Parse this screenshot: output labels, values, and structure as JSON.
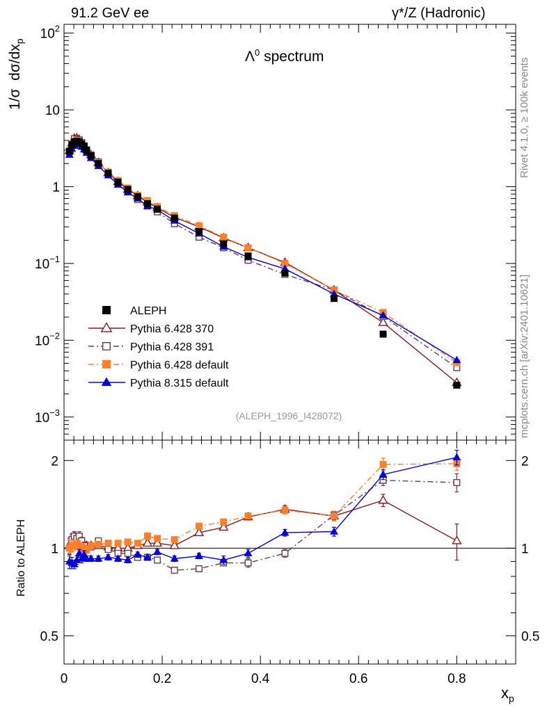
{
  "header": {
    "left": "91.2 GeV ee",
    "right": "γ*/Z (Hadronic)"
  },
  "side": {
    "top": "Rivet 4.1.0, ≥ 100k events",
    "bottom": "mcplots.cern.ch [arXiv:2401.10621]"
  },
  "colors": {
    "ALEPH": "#000000",
    "p370": "#8b1a1a",
    "p391": "#6b3a4a",
    "p6def": "#ff7f2a",
    "p8def": "#0000dd"
  },
  "chart_data": [
    {
      "type": "line",
      "title": "Λ0 spectrum",
      "title_base": "Λ",
      "title_sup": "0",
      "title_rest": " spectrum",
      "ylabel": "1/σ  dσ/dx_p",
      "ylabel_parts": {
        "a": "1/σ",
        "b": "dσ/dx",
        "sub": "p"
      },
      "yscale": "log",
      "ylim": [
        0.0005,
        130
      ],
      "xlim": [
        0,
        0.92
      ],
      "yticks": [
        {
          "v": 100,
          "base": "10",
          "exp": "2"
        },
        {
          "v": 10,
          "base": "10",
          "exp": ""
        },
        {
          "v": 1,
          "base": "1",
          "exp": ""
        },
        {
          "v": 0.1,
          "base": "10",
          "exp": "−1"
        },
        {
          "v": 0.01,
          "base": "10",
          "exp": "−2"
        },
        {
          "v": 0.001,
          "base": "10",
          "exp": "−3"
        }
      ],
      "analysis_label": "(ALEPH_1996_I428072)",
      "legend_position": "lower-left",
      "series": [
        {
          "name": "ALEPH",
          "key": "ALEPH",
          "marker": "square-filled",
          "dash": "none",
          "x": [
            0.011,
            0.016,
            0.021,
            0.026,
            0.031,
            0.036,
            0.041,
            0.046,
            0.055,
            0.07,
            0.09,
            0.11,
            0.13,
            0.15,
            0.17,
            0.19,
            0.225,
            0.275,
            0.325,
            0.375,
            0.45,
            0.55,
            0.65,
            0.8
          ],
          "y": [
            2.9,
            3.5,
            3.85,
            3.9,
            3.85,
            3.6,
            3.35,
            3.0,
            2.55,
            2.0,
            1.5,
            1.15,
            0.92,
            0.74,
            0.6,
            0.51,
            0.39,
            0.26,
            0.18,
            0.125,
            0.075,
            0.035,
            0.012,
            0.0026
          ]
        },
        {
          "name": "Pythia 6.428 370",
          "key": "p370",
          "marker": "triangle-open",
          "dash": "solid",
          "x": [
            0.011,
            0.016,
            0.021,
            0.026,
            0.031,
            0.036,
            0.041,
            0.046,
            0.055,
            0.07,
            0.09,
            0.11,
            0.13,
            0.15,
            0.17,
            0.19,
            0.225,
            0.275,
            0.325,
            0.375,
            0.45,
            0.55,
            0.65,
            0.8
          ],
          "y": [
            2.95,
            3.7,
            4.25,
            4.3,
            4.1,
            3.75,
            3.4,
            3.05,
            2.6,
            2.05,
            1.52,
            1.16,
            0.92,
            0.76,
            0.63,
            0.53,
            0.4,
            0.3,
            0.215,
            0.16,
            0.103,
            0.045,
            0.017,
            0.0028
          ]
        },
        {
          "name": "Pythia 6.428 391",
          "key": "p391",
          "marker": "square-open",
          "dash": "dashdot",
          "x": [
            0.011,
            0.016,
            0.021,
            0.026,
            0.031,
            0.036,
            0.041,
            0.046,
            0.055,
            0.07,
            0.09,
            0.11,
            0.13,
            0.15,
            0.17,
            0.19,
            0.225,
            0.275,
            0.325,
            0.375,
            0.45,
            0.55,
            0.65,
            0.8
          ],
          "y": [
            2.85,
            3.6,
            4.2,
            4.05,
            4.05,
            3.75,
            3.4,
            3.0,
            2.55,
            2.1,
            1.5,
            1.1,
            0.88,
            0.68,
            0.56,
            0.47,
            0.33,
            0.22,
            0.16,
            0.11,
            0.072,
            0.045,
            0.0205,
            0.0044
          ]
        },
        {
          "name": "Pythia 6.428 default",
          "key": "p6def",
          "marker": "square-filled",
          "dash": "dashdot",
          "x": [
            0.011,
            0.016,
            0.021,
            0.026,
            0.031,
            0.036,
            0.041,
            0.046,
            0.055,
            0.07,
            0.09,
            0.11,
            0.13,
            0.15,
            0.17,
            0.19,
            0.225,
            0.275,
            0.325,
            0.375,
            0.45,
            0.55,
            0.65,
            0.8
          ],
          "y": [
            2.9,
            3.55,
            3.9,
            4.0,
            3.9,
            3.6,
            3.3,
            2.95,
            2.6,
            2.05,
            1.55,
            1.2,
            0.96,
            0.77,
            0.66,
            0.55,
            0.42,
            0.31,
            0.22,
            0.16,
            0.1,
            0.045,
            0.023,
            0.0051
          ]
        },
        {
          "name": "Pythia 8.315 default",
          "key": "p8def",
          "marker": "triangle-filled",
          "dash": "solid",
          "x": [
            0.011,
            0.016,
            0.021,
            0.026,
            0.031,
            0.036,
            0.041,
            0.046,
            0.055,
            0.07,
            0.09,
            0.11,
            0.13,
            0.15,
            0.17,
            0.19,
            0.225,
            0.275,
            0.325,
            0.375,
            0.45,
            0.55,
            0.65,
            0.8
          ],
          "y": [
            2.6,
            3.1,
            3.4,
            3.55,
            3.55,
            3.3,
            3.05,
            2.75,
            2.35,
            1.85,
            1.4,
            1.06,
            0.84,
            0.7,
            0.56,
            0.5,
            0.36,
            0.245,
            0.165,
            0.12,
            0.085,
            0.04,
            0.021,
            0.0055
          ]
        }
      ]
    },
    {
      "type": "line",
      "ylabel": "Ratio to ALEPH",
      "xlabel": "x_p",
      "xlabel_parts": {
        "base": "x",
        "sub": "p"
      },
      "yscale": "log",
      "ylim": [
        0.4,
        2.35
      ],
      "xlim": [
        0,
        0.92
      ],
      "yticks": [
        {
          "v": 2,
          "label": "2"
        },
        {
          "v": 1,
          "label": "1"
        },
        {
          "v": 0.5,
          "label": "0.5"
        }
      ],
      "xticks": [
        {
          "v": 0,
          "label": "0"
        },
        {
          "v": 0.2,
          "label": "0.2"
        },
        {
          "v": 0.4,
          "label": "0.4"
        },
        {
          "v": 0.6,
          "label": "0.6"
        },
        {
          "v": 0.8,
          "label": "0.8"
        }
      ],
      "reference_line": 1,
      "series": [
        {
          "name": "Pythia 6.428 370",
          "key": "p370",
          "marker": "triangle-open",
          "dash": "solid",
          "x": [
            0.011,
            0.016,
            0.021,
            0.026,
            0.031,
            0.036,
            0.041,
            0.046,
            0.055,
            0.07,
            0.09,
            0.11,
            0.13,
            0.15,
            0.17,
            0.19,
            0.225,
            0.275,
            0.325,
            0.375,
            0.45,
            0.55,
            0.65,
            0.8
          ],
          "y": [
            1.02,
            1.06,
            1.1,
            1.08,
            1.06,
            1.04,
            1.01,
            1.02,
            1.02,
            1.02,
            1.01,
            1.0,
            1.0,
            1.02,
            1.04,
            1.04,
            1.02,
            1.13,
            1.18,
            1.28,
            1.36,
            1.29,
            1.46,
            1.06
          ],
          "err": [
            0.06,
            0.05,
            0.04,
            0.04,
            0.04,
            0.03,
            0.03,
            0.03,
            0.02,
            0.02,
            0.02,
            0.02,
            0.02,
            0.02,
            0.02,
            0.02,
            0.02,
            0.02,
            0.02,
            0.03,
            0.04,
            0.04,
            0.07,
            0.15
          ]
        },
        {
          "name": "Pythia 6.428 391",
          "key": "p391",
          "marker": "square-open",
          "dash": "dashdot",
          "x": [
            0.011,
            0.016,
            0.021,
            0.026,
            0.031,
            0.036,
            0.041,
            0.046,
            0.055,
            0.07,
            0.09,
            0.11,
            0.13,
            0.15,
            0.17,
            0.19,
            0.225,
            0.275,
            0.325,
            0.375,
            0.45,
            0.55,
            0.65,
            0.8
          ],
          "y": [
            1.0,
            1.07,
            1.1,
            1.08,
            1.1,
            1.06,
            1.02,
            0.99,
            1.01,
            1.06,
            0.99,
            0.96,
            0.96,
            0.93,
            0.93,
            0.91,
            0.84,
            0.85,
            0.89,
            0.89,
            0.96,
            1.3,
            1.71,
            1.68
          ],
          "err": [
            0.06,
            0.05,
            0.04,
            0.04,
            0.04,
            0.03,
            0.03,
            0.03,
            0.02,
            0.02,
            0.02,
            0.02,
            0.02,
            0.02,
            0.02,
            0.02,
            0.02,
            0.02,
            0.02,
            0.03,
            0.03,
            0.04,
            0.07,
            0.12
          ]
        },
        {
          "name": "Pythia 6.428 default",
          "key": "p6def",
          "marker": "square-filled",
          "dash": "dashdot",
          "x": [
            0.011,
            0.016,
            0.021,
            0.026,
            0.031,
            0.036,
            0.041,
            0.046,
            0.055,
            0.07,
            0.09,
            0.11,
            0.13,
            0.15,
            0.17,
            0.19,
            0.225,
            0.275,
            0.325,
            0.375,
            0.45,
            0.55,
            0.65,
            0.8
          ],
          "y": [
            1.0,
            1.02,
            1.02,
            1.03,
            1.02,
            1.01,
            0.99,
            0.99,
            1.02,
            1.03,
            1.04,
            1.04,
            1.05,
            1.04,
            1.1,
            1.08,
            1.07,
            1.19,
            1.23,
            1.29,
            1.35,
            1.29,
            1.94,
            1.95
          ],
          "err": [
            0.06,
            0.05,
            0.04,
            0.04,
            0.04,
            0.03,
            0.03,
            0.03,
            0.02,
            0.02,
            0.02,
            0.02,
            0.02,
            0.02,
            0.03,
            0.02,
            0.02,
            0.02,
            0.03,
            0.03,
            0.04,
            0.05,
            0.1,
            0.1
          ]
        },
        {
          "name": "Pythia 8.315 default",
          "key": "p8def",
          "marker": "triangle-filled",
          "dash": "solid",
          "x": [
            0.011,
            0.016,
            0.021,
            0.026,
            0.031,
            0.036,
            0.041,
            0.046,
            0.055,
            0.07,
            0.09,
            0.11,
            0.13,
            0.15,
            0.17,
            0.19,
            0.225,
            0.275,
            0.325,
            0.375,
            0.45,
            0.55,
            0.65,
            0.8
          ],
          "y": [
            0.9,
            0.89,
            0.88,
            0.91,
            0.96,
            0.92,
            0.95,
            0.92,
            0.92,
            0.92,
            0.93,
            0.92,
            0.91,
            0.95,
            0.93,
            0.97,
            0.92,
            0.94,
            0.91,
            0.96,
            1.13,
            1.14,
            1.79,
            2.05
          ],
          "err": [
            0.05,
            0.04,
            0.03,
            0.03,
            0.03,
            0.03,
            0.03,
            0.02,
            0.02,
            0.02,
            0.02,
            0.02,
            0.02,
            0.02,
            0.02,
            0.02,
            0.02,
            0.02,
            0.03,
            0.03,
            0.03,
            0.04,
            0.07,
            0.12
          ]
        }
      ]
    }
  ]
}
